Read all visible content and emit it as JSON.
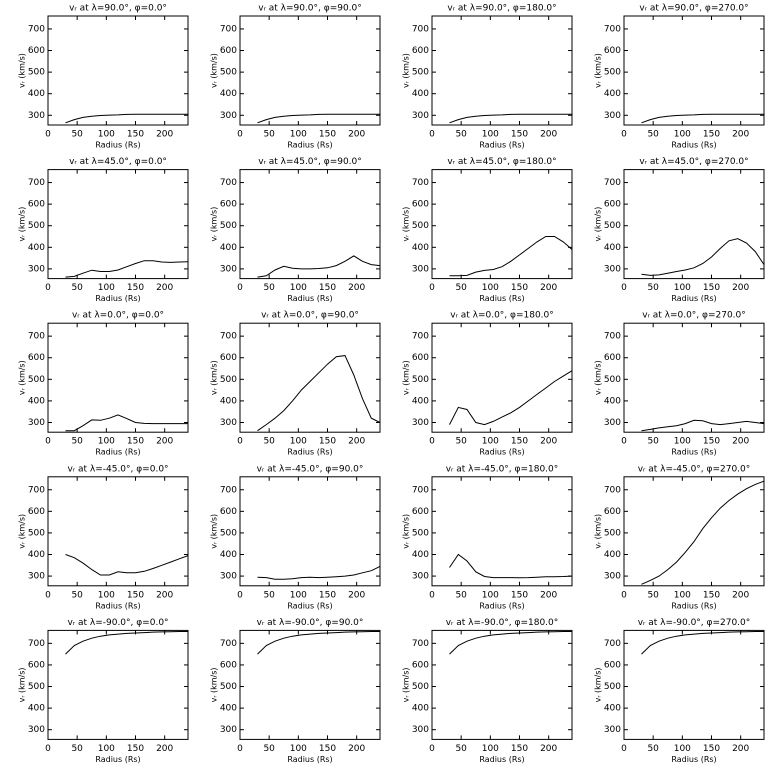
{
  "chart_data": [
    {
      "type": "line",
      "title": "vᵣ at λ=90.0°, φ=0.0°",
      "xlabel": "Radius (Rs)",
      "ylabel": "vᵣ (km/s)",
      "x": [
        30,
        45,
        60,
        75,
        90,
        105,
        120,
        135,
        150,
        165,
        180,
        195,
        210,
        225,
        240
      ],
      "values": [
        265,
        280,
        290,
        296,
        299,
        301,
        302,
        304,
        305,
        305,
        305,
        305,
        305,
        305,
        305
      ],
      "color": "#000000",
      "xlim": [
        0,
        240
      ],
      "ylim": [
        255,
        760
      ],
      "xticks": [
        0,
        50,
        100,
        150,
        200
      ],
      "yticks": [
        300,
        400,
        500,
        600,
        700
      ]
    },
    {
      "type": "line",
      "title": "vᵣ at λ=90.0°, φ=90.0°",
      "xlabel": "Radius (Rs)",
      "ylabel": "vᵣ (km/s)",
      "x": [
        30,
        45,
        60,
        75,
        90,
        105,
        120,
        135,
        150,
        165,
        180,
        195,
        210,
        225,
        240
      ],
      "values": [
        265,
        280,
        290,
        296,
        299,
        301,
        302,
        304,
        305,
        305,
        305,
        305,
        305,
        305,
        305
      ],
      "color": "#000000",
      "xlim": [
        0,
        240
      ],
      "ylim": [
        255,
        760
      ],
      "xticks": [
        0,
        50,
        100,
        150,
        200
      ],
      "yticks": [
        300,
        400,
        500,
        600,
        700
      ]
    },
    {
      "type": "line",
      "title": "vᵣ at λ=90.0°, φ=180.0°",
      "xlabel": "Radius (Rs)",
      "ylabel": "vᵣ (km/s)",
      "x": [
        30,
        45,
        60,
        75,
        90,
        105,
        120,
        135,
        150,
        165,
        180,
        195,
        210,
        225,
        240
      ],
      "values": [
        265,
        280,
        290,
        296,
        299,
        301,
        302,
        304,
        305,
        305,
        305,
        305,
        305,
        305,
        305
      ],
      "color": "#000000",
      "xlim": [
        0,
        240
      ],
      "ylim": [
        255,
        760
      ],
      "xticks": [
        0,
        50,
        100,
        150,
        200
      ],
      "yticks": [
        300,
        400,
        500,
        600,
        700
      ]
    },
    {
      "type": "line",
      "title": "vᵣ at λ=90.0°, φ=270.0°",
      "xlabel": "Radius (Rs)",
      "ylabel": "vᵣ (km/s)",
      "x": [
        30,
        45,
        60,
        75,
        90,
        105,
        120,
        135,
        150,
        165,
        180,
        195,
        210,
        225,
        240
      ],
      "values": [
        265,
        280,
        290,
        296,
        299,
        301,
        302,
        304,
        305,
        305,
        305,
        305,
        305,
        305,
        305
      ],
      "color": "#000000",
      "xlim": [
        0,
        240
      ],
      "ylim": [
        255,
        760
      ],
      "xticks": [
        0,
        50,
        100,
        150,
        200
      ],
      "yticks": [
        300,
        400,
        500,
        600,
        700
      ]
    },
    {
      "type": "line",
      "title": "vᵣ at λ=45.0°, φ=0.0°",
      "xlabel": "Radius (Rs)",
      "ylabel": "vᵣ (km/s)",
      "x": [
        30,
        45,
        60,
        75,
        90,
        105,
        120,
        135,
        150,
        165,
        180,
        195,
        210,
        225,
        240
      ],
      "values": [
        262,
        265,
        280,
        294,
        288,
        288,
        295,
        310,
        325,
        338,
        338,
        332,
        330,
        332,
        333
      ],
      "color": "#000000",
      "xlim": [
        0,
        240
      ],
      "ylim": [
        255,
        760
      ],
      "xticks": [
        0,
        50,
        100,
        150,
        200
      ],
      "yticks": [
        300,
        400,
        500,
        600,
        700
      ]
    },
    {
      "type": "line",
      "title": "vᵣ at λ=45.0°, φ=90.0°",
      "xlabel": "Radius (Rs)",
      "ylabel": "vᵣ (km/s)",
      "x": [
        30,
        45,
        60,
        75,
        90,
        105,
        120,
        135,
        150,
        165,
        180,
        195,
        210,
        225,
        240
      ],
      "values": [
        262,
        268,
        295,
        312,
        303,
        300,
        300,
        302,
        305,
        315,
        335,
        360,
        335,
        320,
        315
      ],
      "color": "#000000",
      "xlim": [
        0,
        240
      ],
      "ylim": [
        255,
        760
      ],
      "xticks": [
        0,
        50,
        100,
        150,
        200
      ],
      "yticks": [
        300,
        400,
        500,
        600,
        700
      ]
    },
    {
      "type": "line",
      "title": "vᵣ at λ=45.0°, φ=180.0°",
      "xlabel": "Radius (Rs)",
      "ylabel": "vᵣ (km/s)",
      "x": [
        30,
        45,
        60,
        75,
        90,
        105,
        120,
        135,
        150,
        165,
        180,
        195,
        210,
        225,
        240
      ],
      "values": [
        268,
        268,
        270,
        285,
        293,
        297,
        310,
        335,
        365,
        395,
        425,
        450,
        450,
        425,
        390
      ],
      "color": "#000000",
      "xlim": [
        0,
        240
      ],
      "ylim": [
        255,
        760
      ],
      "xticks": [
        0,
        50,
        100,
        150,
        200
      ],
      "yticks": [
        300,
        400,
        500,
        600,
        700
      ]
    },
    {
      "type": "line",
      "title": "vᵣ at λ=45.0°, φ=270.0°",
      "xlabel": "Radius (Rs)",
      "ylabel": "vᵣ (km/s)",
      "x": [
        30,
        45,
        60,
        75,
        90,
        105,
        120,
        135,
        150,
        165,
        180,
        195,
        210,
        225,
        240
      ],
      "values": [
        275,
        270,
        272,
        280,
        288,
        295,
        305,
        325,
        355,
        395,
        430,
        440,
        420,
        380,
        320
      ],
      "color": "#000000",
      "xlim": [
        0,
        240
      ],
      "ylim": [
        255,
        760
      ],
      "xticks": [
        0,
        50,
        100,
        150,
        200
      ],
      "yticks": [
        300,
        400,
        500,
        600,
        700
      ]
    },
    {
      "type": "line",
      "title": "vᵣ at λ=0.0°, φ=0.0°",
      "xlabel": "Radius (Rs)",
      "ylabel": "vᵣ (km/s)",
      "x": [
        30,
        45,
        60,
        75,
        90,
        105,
        120,
        135,
        150,
        165,
        180,
        195,
        210,
        225,
        240
      ],
      "values": [
        262,
        262,
        285,
        312,
        310,
        320,
        335,
        318,
        300,
        296,
        295,
        295,
        295,
        295,
        295
      ],
      "color": "#000000",
      "xlim": [
        0,
        240
      ],
      "ylim": [
        255,
        760
      ],
      "xticks": [
        0,
        50,
        100,
        150,
        200
      ],
      "yticks": [
        300,
        400,
        500,
        600,
        700
      ]
    },
    {
      "type": "line",
      "title": "vᵣ at λ=0.0°, φ=90.0°",
      "xlabel": "Radius (Rs)",
      "ylabel": "vᵣ (km/s)",
      "x": [
        30,
        45,
        60,
        75,
        90,
        105,
        120,
        135,
        150,
        165,
        180,
        195,
        210,
        225,
        240
      ],
      "values": [
        262,
        290,
        320,
        355,
        400,
        450,
        490,
        530,
        570,
        605,
        610,
        520,
        410,
        320,
        300
      ],
      "color": "#000000",
      "xlim": [
        0,
        240
      ],
      "ylim": [
        255,
        760
      ],
      "xticks": [
        0,
        50,
        100,
        150,
        200
      ],
      "yticks": [
        300,
        400,
        500,
        600,
        700
      ]
    },
    {
      "type": "line",
      "title": "vᵣ at λ=0.0°, φ=180.0°",
      "xlabel": "Radius (Rs)",
      "ylabel": "vᵣ (km/s)",
      "x": [
        30,
        45,
        60,
        75,
        90,
        105,
        120,
        135,
        150,
        165,
        180,
        195,
        210,
        225,
        240
      ],
      "values": [
        290,
        370,
        360,
        300,
        290,
        305,
        325,
        345,
        370,
        400,
        430,
        460,
        490,
        515,
        540
      ],
      "color": "#000000",
      "xlim": [
        0,
        240
      ],
      "ylim": [
        255,
        760
      ],
      "xticks": [
        0,
        50,
        100,
        150,
        200
      ],
      "yticks": [
        300,
        400,
        500,
        600,
        700
      ]
    },
    {
      "type": "line",
      "title": "vᵣ at λ=0.0°, φ=270.0°",
      "xlabel": "Radius (Rs)",
      "ylabel": "vᵣ (km/s)",
      "x": [
        30,
        45,
        60,
        75,
        90,
        105,
        120,
        135,
        150,
        165,
        180,
        195,
        210,
        225,
        240
      ],
      "values": [
        262,
        268,
        275,
        280,
        285,
        295,
        310,
        308,
        295,
        290,
        295,
        300,
        305,
        300,
        295
      ],
      "color": "#000000",
      "xlim": [
        0,
        240
      ],
      "ylim": [
        255,
        760
      ],
      "xticks": [
        0,
        50,
        100,
        150,
        200
      ],
      "yticks": [
        300,
        400,
        500,
        600,
        700
      ]
    },
    {
      "type": "line",
      "title": "vᵣ at λ=-45.0°, φ=0.0°",
      "xlabel": "Radius (Rs)",
      "ylabel": "vᵣ (km/s)",
      "x": [
        30,
        45,
        60,
        75,
        90,
        105,
        120,
        135,
        150,
        165,
        180,
        195,
        210,
        225,
        240
      ],
      "values": [
        400,
        385,
        360,
        330,
        305,
        305,
        320,
        315,
        315,
        322,
        335,
        350,
        365,
        380,
        395
      ],
      "color": "#000000",
      "xlim": [
        0,
        240
      ],
      "ylim": [
        255,
        760
      ],
      "xticks": [
        0,
        50,
        100,
        150,
        200
      ],
      "yticks": [
        300,
        400,
        500,
        600,
        700
      ]
    },
    {
      "type": "line",
      "title": "vᵣ at λ=-45.0°, φ=90.0°",
      "xlabel": "Radius (Rs)",
      "ylabel": "vᵣ (km/s)",
      "x": [
        30,
        45,
        60,
        75,
        90,
        105,
        120,
        135,
        150,
        165,
        180,
        195,
        210,
        225,
        240
      ],
      "values": [
        295,
        293,
        285,
        285,
        288,
        293,
        295,
        293,
        295,
        297,
        300,
        305,
        315,
        325,
        345
      ],
      "color": "#000000",
      "xlim": [
        0,
        240
      ],
      "ylim": [
        255,
        760
      ],
      "xticks": [
        0,
        50,
        100,
        150,
        200
      ],
      "yticks": [
        300,
        400,
        500,
        600,
        700
      ]
    },
    {
      "type": "line",
      "title": "vᵣ at λ=-45.0°, φ=180.0°",
      "xlabel": "Radius (Rs)",
      "ylabel": "vᵣ (km/s)",
      "x": [
        30,
        45,
        60,
        75,
        90,
        105,
        120,
        135,
        150,
        165,
        180,
        195,
        210,
        225,
        240
      ],
      "values": [
        340,
        400,
        370,
        320,
        298,
        293,
        293,
        293,
        292,
        293,
        295,
        297,
        297,
        298,
        300
      ],
      "color": "#000000",
      "xlim": [
        0,
        240
      ],
      "ylim": [
        255,
        760
      ],
      "xticks": [
        0,
        50,
        100,
        150,
        200
      ],
      "yticks": [
        300,
        400,
        500,
        600,
        700
      ]
    },
    {
      "type": "line",
      "title": "vᵣ at λ=-45.0°, φ=270.0°",
      "xlabel": "Radius (Rs)",
      "ylabel": "vᵣ (km/s)",
      "x": [
        30,
        45,
        60,
        75,
        90,
        105,
        120,
        135,
        150,
        165,
        180,
        195,
        210,
        225,
        240
      ],
      "values": [
        262,
        280,
        300,
        330,
        365,
        410,
        460,
        520,
        570,
        615,
        650,
        680,
        705,
        725,
        740
      ],
      "color": "#000000",
      "xlim": [
        0,
        240
      ],
      "ylim": [
        255,
        760
      ],
      "xticks": [
        0,
        50,
        100,
        150,
        200
      ],
      "yticks": [
        300,
        400,
        500,
        600,
        700
      ]
    },
    {
      "type": "line",
      "title": "vᵣ at λ=-90.0°, φ=0.0°",
      "xlabel": "Radius (Rs)",
      "ylabel": "vᵣ (km/s)",
      "x": [
        30,
        45,
        60,
        75,
        90,
        105,
        120,
        135,
        150,
        165,
        180,
        195,
        210,
        225,
        240
      ],
      "values": [
        650,
        690,
        710,
        724,
        733,
        739,
        743,
        746,
        748,
        750,
        752,
        753,
        754,
        755,
        755
      ],
      "color": "#000000",
      "xlim": [
        0,
        240
      ],
      "ylim": [
        255,
        760
      ],
      "xticks": [
        0,
        50,
        100,
        150,
        200
      ],
      "yticks": [
        300,
        400,
        500,
        600,
        700
      ]
    },
    {
      "type": "line",
      "title": "vᵣ at λ=-90.0°, φ=90.0°",
      "xlabel": "Radius (Rs)",
      "ylabel": "vᵣ (km/s)",
      "x": [
        30,
        45,
        60,
        75,
        90,
        105,
        120,
        135,
        150,
        165,
        180,
        195,
        210,
        225,
        240
      ],
      "values": [
        650,
        690,
        710,
        724,
        733,
        739,
        743,
        746,
        748,
        750,
        752,
        753,
        754,
        755,
        755
      ],
      "color": "#000000",
      "xlim": [
        0,
        240
      ],
      "ylim": [
        255,
        760
      ],
      "xticks": [
        0,
        50,
        100,
        150,
        200
      ],
      "yticks": [
        300,
        400,
        500,
        600,
        700
      ]
    },
    {
      "type": "line",
      "title": "vᵣ at λ=-90.0°, φ=180.0°",
      "xlabel": "Radius (Rs)",
      "ylabel": "vᵣ (km/s)",
      "x": [
        30,
        45,
        60,
        75,
        90,
        105,
        120,
        135,
        150,
        165,
        180,
        195,
        210,
        225,
        240
      ],
      "values": [
        650,
        690,
        710,
        724,
        733,
        739,
        743,
        746,
        748,
        750,
        752,
        753,
        754,
        755,
        755
      ],
      "color": "#000000",
      "xlim": [
        0,
        240
      ],
      "ylim": [
        255,
        760
      ],
      "xticks": [
        0,
        50,
        100,
        150,
        200
      ],
      "yticks": [
        300,
        400,
        500,
        600,
        700
      ]
    },
    {
      "type": "line",
      "title": "vᵣ at λ=-90.0°, φ=270.0°",
      "xlabel": "Radius (Rs)",
      "ylabel": "vᵣ (km/s)",
      "x": [
        30,
        45,
        60,
        75,
        90,
        105,
        120,
        135,
        150,
        165,
        180,
        195,
        210,
        225,
        240
      ],
      "values": [
        650,
        690,
        710,
        724,
        733,
        739,
        743,
        746,
        748,
        750,
        752,
        753,
        754,
        755,
        755
      ],
      "color": "#000000",
      "xlim": [
        0,
        240
      ],
      "ylim": [
        255,
        760
      ],
      "xticks": [
        0,
        50,
        100,
        150,
        200
      ],
      "yticks": [
        300,
        400,
        500,
        600,
        700
      ]
    }
  ]
}
